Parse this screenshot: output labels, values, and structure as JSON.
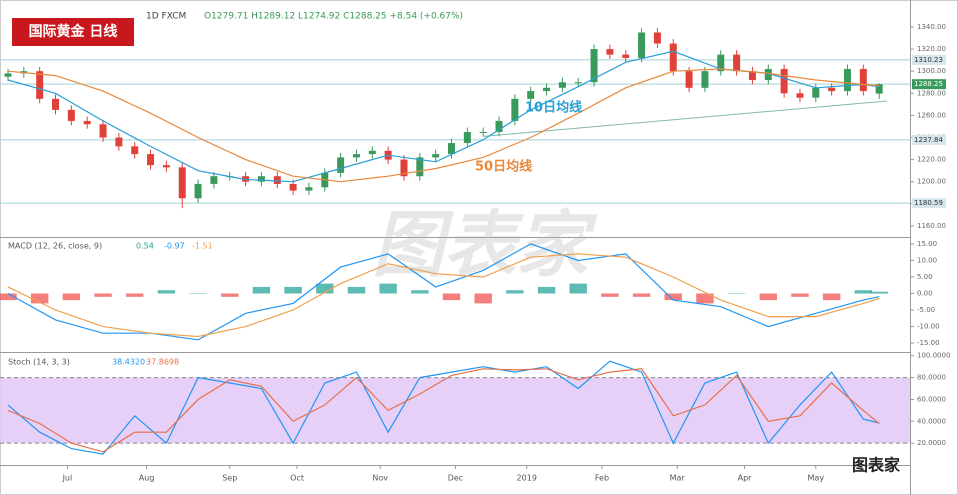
{
  "watermark": "图表家",
  "logo": "图表家",
  "chart_data": [
    {
      "type": "candlestick",
      "title": "国际黄金 日线",
      "header": "1D  FXCM",
      "ohlc_label": "O1279.71  H1289.12  L1274.92  C1288.25  +8.54 (+0.67%)",
      "up_color": "#3a9a5c",
      "down_color": "#e0403a",
      "xlim": [
        0,
        224
      ],
      "xticks": [
        {
          "value": 15,
          "label": "Jul"
        },
        {
          "value": 35,
          "label": "Aug"
        },
        {
          "value": 56,
          "label": "Sep"
        },
        {
          "value": 73,
          "label": "Oct"
        },
        {
          "value": 94,
          "label": "Nov"
        },
        {
          "value": 113,
          "label": "Dec"
        },
        {
          "value": 131,
          "label": "2019"
        },
        {
          "value": 150,
          "label": "Feb"
        },
        {
          "value": 169,
          "label": "Mar"
        },
        {
          "value": 186,
          "label": "Apr"
        },
        {
          "value": 204,
          "label": "May"
        }
      ],
      "ylim": [
        1150,
        1364.4
      ],
      "yticks": [
        {
          "value": 1160,
          "label": "1160.00"
        },
        {
          "value": 1180,
          "label": "1180.00"
        },
        {
          "value": 1200,
          "label": "1200.00"
        },
        {
          "value": 1220,
          "label": "1220.00"
        },
        {
          "value": 1240,
          "label": "1240.00"
        },
        {
          "value": 1260,
          "label": "1260.00"
        },
        {
          "value": 1280,
          "label": "1280.00"
        },
        {
          "value": 1300,
          "label": "1300.00"
        },
        {
          "value": 1320,
          "label": "1320.00"
        },
        {
          "value": 1340,
          "label": "1340.00"
        }
      ],
      "x": [
        0,
        4,
        8,
        12,
        16,
        20,
        24,
        28,
        32,
        36,
        40,
        44,
        48,
        52,
        56,
        60,
        64,
        68,
        72,
        76,
        80,
        84,
        88,
        92,
        96,
        100,
        104,
        108,
        112,
        116,
        120,
        124,
        128,
        132,
        136,
        140,
        144,
        148,
        152,
        156,
        160,
        164,
        168,
        172,
        176,
        180,
        184,
        188,
        192,
        196,
        200,
        204,
        208,
        212,
        216,
        220
      ],
      "open": [
        1295,
        1298,
        1300,
        1275,
        1265,
        1255,
        1252,
        1240,
        1232,
        1225,
        1215,
        1213,
        1185,
        1198,
        1205,
        1205,
        1200,
        1205,
        1198,
        1192,
        1195,
        1208,
        1222,
        1225,
        1228,
        1220,
        1205,
        1222,
        1225,
        1235,
        1245,
        1245,
        1255,
        1275,
        1282,
        1285,
        1290,
        1290,
        1320,
        1315,
        1312,
        1335,
        1325,
        1300,
        1285,
        1300,
        1315,
        1300,
        1292,
        1302,
        1280,
        1276,
        1285,
        1282,
        1302,
        1279.71
      ],
      "high": [
        1302,
        1304,
        1304,
        1279,
        1269,
        1259,
        1256,
        1244,
        1236,
        1229,
        1219,
        1217,
        1202,
        1209,
        1209,
        1209,
        1209,
        1209,
        1202,
        1199,
        1212,
        1226,
        1229,
        1232,
        1232,
        1224,
        1226,
        1229,
        1239,
        1249,
        1249,
        1259,
        1279,
        1286,
        1289,
        1294,
        1294,
        1324,
        1324,
        1319,
        1339,
        1339,
        1329,
        1304,
        1304,
        1319,
        1319,
        1304,
        1306,
        1306,
        1284,
        1289,
        1289,
        1306,
        1306,
        1289.12
      ],
      "low": [
        1291,
        1294,
        1271,
        1261,
        1251,
        1248,
        1236,
        1228,
        1221,
        1211,
        1209,
        1176,
        1181,
        1194,
        1201,
        1196,
        1196,
        1194,
        1188,
        1188,
        1191,
        1204,
        1218,
        1221,
        1216,
        1201,
        1201,
        1218,
        1221,
        1231,
        1241,
        1241,
        1251,
        1271,
        1278,
        1281,
        1286,
        1286,
        1311,
        1308,
        1308,
        1321,
        1296,
        1281,
        1281,
        1296,
        1296,
        1288,
        1288,
        1276,
        1272,
        1272,
        1278,
        1278,
        1278,
        1274.92
      ],
      "close": [
        1298,
        1300,
        1275,
        1265,
        1255,
        1252,
        1240,
        1232,
        1225,
        1215,
        1213,
        1185,
        1198,
        1205,
        1205,
        1200,
        1205,
        1198,
        1192,
        1195,
        1208,
        1222,
        1225,
        1228,
        1220,
        1205,
        1222,
        1225,
        1235,
        1245,
        1245,
        1255,
        1275,
        1282,
        1285,
        1290,
        1290,
        1320,
        1315,
        1312,
        1335,
        1325,
        1300,
        1285,
        1300,
        1315,
        1300,
        1292,
        1302,
        1280,
        1276,
        1285,
        1282,
        1302,
        1282,
        1288.25
      ],
      "lines": [
        {
          "name": "10日均线",
          "color": "#2a9fd6",
          "x": [
            0,
            12,
            24,
            36,
            48,
            60,
            72,
            84,
            96,
            108,
            120,
            132,
            144,
            156,
            168,
            180,
            192,
            204,
            216,
            220
          ],
          "values": [
            1292,
            1280,
            1255,
            1232,
            1210,
            1202,
            1200,
            1212,
            1224,
            1218,
            1238,
            1265,
            1286,
            1308,
            1318,
            1302,
            1298,
            1285,
            1288,
            1286
          ]
        },
        {
          "name": "50日均线",
          "color": "#e8883a",
          "x": [
            0,
            12,
            24,
            36,
            48,
            60,
            72,
            84,
            96,
            108,
            120,
            132,
            144,
            156,
            168,
            180,
            192,
            204,
            216,
            220
          ],
          "values": [
            1300,
            1296,
            1282,
            1262,
            1240,
            1220,
            1205,
            1200,
            1205,
            1212,
            1222,
            1240,
            1262,
            1285,
            1300,
            1302,
            1298,
            1292,
            1288,
            1287
          ]
        }
      ],
      "levels": [
        1310.23,
        1288.25,
        1237.84,
        1180.59
      ],
      "trendline": {
        "x": [
          120,
          222
        ],
        "values": [
          1241,
          1273
        ]
      }
    },
    {
      "type": "macd",
      "title": "MACD (12, 26, close, 9)",
      "header_values": [
        0.54,
        -0.97,
        -1.51
      ],
      "ylim": [
        -17.7,
        16.8
      ],
      "yticks": [
        {
          "value": 15,
          "label": "15.00"
        },
        {
          "value": 10,
          "label": "10.00"
        },
        {
          "value": 5,
          "label": "5.00"
        },
        {
          "value": 0,
          "label": "0.00"
        },
        {
          "value": -5,
          "label": "-5.00"
        },
        {
          "value": -10,
          "label": "-10.00"
        },
        {
          "value": -15,
          "label": "-15.00"
        }
      ],
      "x": [
        0,
        8,
        16,
        24,
        32,
        40,
        48,
        56,
        64,
        72,
        80,
        88,
        96,
        104,
        112,
        120,
        128,
        136,
        144,
        152,
        160,
        168,
        176,
        184,
        192,
        200,
        208,
        216,
        220
      ],
      "histogram": [
        -2,
        -3,
        -2,
        -1,
        -1,
        1,
        0,
        -1,
        2,
        2,
        3,
        2,
        3,
        1,
        -2,
        -3,
        1,
        2,
        3,
        -1,
        -1,
        -2,
        -3,
        0,
        -2,
        -1,
        -2,
        1,
        0.54
      ],
      "up_color": "#26a69a",
      "down_color": "#ef5350",
      "series": [
        {
          "color": "#2196f3",
          "x": [
            0,
            12,
            24,
            36,
            48,
            60,
            72,
            84,
            96,
            108,
            120,
            132,
            144,
            156,
            168,
            180,
            192,
            204,
            216,
            220
          ],
          "values": [
            0,
            -8,
            -12,
            -12,
            -14,
            -6,
            -3,
            8,
            12,
            2,
            7,
            15,
            10,
            12,
            -2,
            -4,
            -10,
            -6,
            -2,
            -0.97
          ]
        },
        {
          "color": "#f0a050",
          "x": [
            0,
            12,
            24,
            36,
            48,
            60,
            72,
            84,
            96,
            108,
            120,
            132,
            144,
            156,
            168,
            180,
            192,
            204,
            216,
            220
          ],
          "values": [
            2,
            -5,
            -10,
            -12,
            -13,
            -10,
            -5,
            3,
            9,
            6,
            5,
            11,
            12,
            11,
            5,
            -2,
            -7,
            -7,
            -3,
            -1.51
          ]
        }
      ]
    },
    {
      "type": "stoch",
      "title": "Stoch (14, 3, 3)",
      "header_values": [
        "38.4320",
        "37.8698"
      ],
      "ylim": [
        0,
        102.5
      ],
      "yticks": [
        {
          "value": 100,
          "label": "100.0000"
        },
        {
          "value": 80,
          "label": "80.0000"
        },
        {
          "value": 60,
          "label": "60.0000"
        },
        {
          "value": 40,
          "label": "40.0000"
        },
        {
          "value": 20,
          "label": "20.0000"
        }
      ],
      "band": [
        20,
        80
      ],
      "band_color": "#e3c8f7",
      "x": [
        0,
        8,
        16,
        24,
        32,
        40,
        48,
        56,
        64,
        72,
        80,
        88,
        96,
        104,
        112,
        120,
        128,
        136,
        144,
        152,
        160,
        168,
        176,
        184,
        192,
        200,
        208,
        216,
        220
      ],
      "series": [
        {
          "color": "#2196f3",
          "values": [
            55,
            30,
            15,
            10,
            45,
            20,
            80,
            75,
            70,
            20,
            75,
            85,
            30,
            80,
            85,
            90,
            85,
            90,
            70,
            95,
            85,
            20,
            75,
            85,
            20,
            55,
            85,
            42,
            38.432
          ]
        },
        {
          "color": "#e5704a",
          "values": [
            50,
            38,
            20,
            12,
            30,
            30,
            60,
            78,
            72,
            40,
            55,
            80,
            50,
            65,
            82,
            88,
            87,
            88,
            78,
            85,
            88,
            45,
            55,
            82,
            40,
            45,
            75,
            50,
            37.8698
          ]
        }
      ]
    }
  ]
}
